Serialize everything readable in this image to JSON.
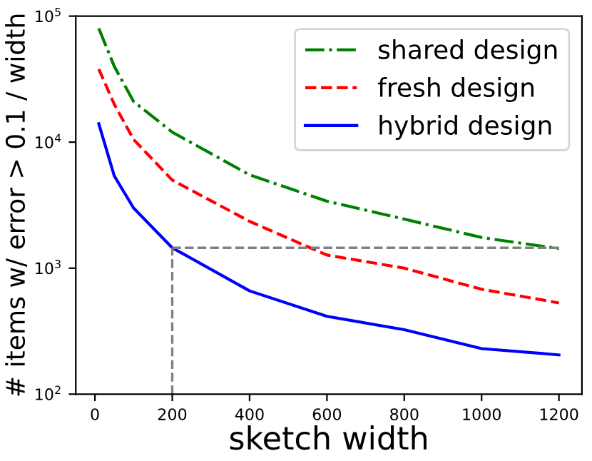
{
  "chart_data": {
    "type": "line",
    "xlabel": "sketch width",
    "ylabel": "# items w/ error > 0.1 / width",
    "log": "y",
    "x": [
      10,
      50,
      100,
      200,
      400,
      600,
      800,
      1000,
      1200
    ],
    "series": [
      {
        "name": "shared design",
        "color": "#008000",
        "line_style": "dashdot",
        "values": [
          80000,
          40000,
          21000,
          12000,
          5500,
          3400,
          2450,
          1750,
          1430
        ]
      },
      {
        "name": "fresh design",
        "color": "#ff0000",
        "line_style": "dashed",
        "values": [
          38000,
          20000,
          10500,
          5000,
          2350,
          1270,
          1000,
          680,
          530
        ]
      },
      {
        "name": "hybrid design",
        "color": "#0000ff",
        "line_style": "solid",
        "values": [
          14000,
          5400,
          3000,
          1450,
          660,
          415,
          325,
          230,
          205
        ]
      }
    ],
    "ref_lines": [
      {
        "axis": "x",
        "value": 200,
        "color": "#808080",
        "line_style": "dashed"
      },
      {
        "axis": "y",
        "value": 1450,
        "color": "#808080",
        "line_style": "dashed"
      }
    ],
    "xlim": [
      -49.5,
      1259.5
    ],
    "ylim": [
      100,
      100000
    ],
    "xticks": [
      0,
      200,
      400,
      600,
      800,
      1000,
      1200
    ],
    "yticks": [
      {
        "value": 100,
        "label": "10$^{2}$"
      },
      {
        "value": 1000,
        "label": "10$^{3}$"
      },
      {
        "value": 10000,
        "label": "10$^{4}$"
      },
      {
        "value": 100000,
        "label": "10$^{5}$"
      }
    ],
    "legend": "top right",
    "grid": false
  }
}
